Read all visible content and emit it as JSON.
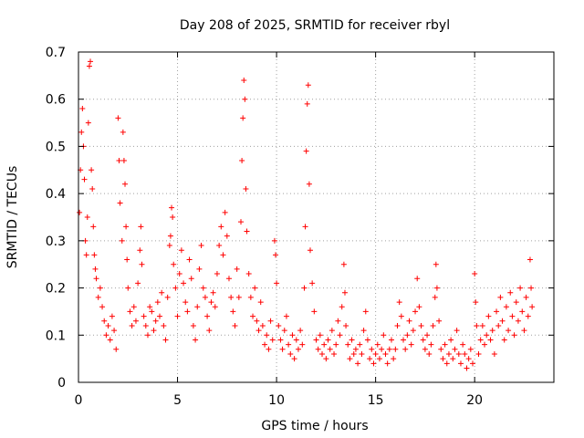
{
  "chart_data": {
    "type": "scatter",
    "title": "Day 208 of 2025, SRMTID for receiver rbyl",
    "xlabel": "GPS time / hours",
    "ylabel": "SRMTID / TECUs",
    "xlim": [
      0,
      24
    ],
    "ylim": [
      0,
      0.7
    ],
    "xticks": [
      0,
      5,
      10,
      15,
      20
    ],
    "yticks": [
      0,
      0.1,
      0.2,
      0.3,
      0.4,
      0.5,
      0.6,
      0.7
    ],
    "xtick_labels": [
      "0",
      "5",
      "10",
      "15",
      "20"
    ],
    "ytick_labels": [
      "0",
      "0.1",
      "0.2",
      "0.3",
      "0.4",
      "0.5",
      "0.6",
      "0.7"
    ],
    "grid": true,
    "marker": "+",
    "color": "#ff0000",
    "series": [
      {
        "name": "SRMTID",
        "points": [
          [
            0.05,
            0.36
          ],
          [
            0.1,
            0.45
          ],
          [
            0.15,
            0.53
          ],
          [
            0.2,
            0.58
          ],
          [
            0.25,
            0.5
          ],
          [
            0.3,
            0.43
          ],
          [
            0.35,
            0.3
          ],
          [
            0.4,
            0.27
          ],
          [
            0.45,
            0.35
          ],
          [
            0.5,
            0.55
          ],
          [
            0.55,
            0.67
          ],
          [
            0.6,
            0.68
          ],
          [
            0.65,
            0.45
          ],
          [
            0.7,
            0.41
          ],
          [
            0.75,
            0.33
          ],
          [
            0.8,
            0.27
          ],
          [
            0.85,
            0.24
          ],
          [
            0.9,
            0.22
          ],
          [
            1.0,
            0.18
          ],
          [
            1.1,
            0.2
          ],
          [
            1.2,
            0.16
          ],
          [
            1.3,
            0.13
          ],
          [
            1.4,
            0.1
          ],
          [
            1.5,
            0.12
          ],
          [
            1.6,
            0.09
          ],
          [
            1.7,
            0.14
          ],
          [
            1.8,
            0.11
          ],
          [
            1.9,
            0.07
          ],
          [
            2.0,
            0.56
          ],
          [
            2.05,
            0.47
          ],
          [
            2.1,
            0.38
          ],
          [
            2.2,
            0.3
          ],
          [
            2.25,
            0.53
          ],
          [
            2.3,
            0.47
          ],
          [
            2.35,
            0.42
          ],
          [
            2.4,
            0.33
          ],
          [
            2.45,
            0.26
          ],
          [
            2.5,
            0.2
          ],
          [
            2.6,
            0.15
          ],
          [
            2.7,
            0.12
          ],
          [
            2.8,
            0.16
          ],
          [
            2.9,
            0.13
          ],
          [
            3.0,
            0.21
          ],
          [
            3.1,
            0.28
          ],
          [
            3.15,
            0.33
          ],
          [
            3.2,
            0.25
          ],
          [
            3.3,
            0.14
          ],
          [
            3.4,
            0.12
          ],
          [
            3.5,
            0.1
          ],
          [
            3.6,
            0.16
          ],
          [
            3.7,
            0.15
          ],
          [
            3.8,
            0.11
          ],
          [
            3.9,
            0.13
          ],
          [
            4.0,
            0.17
          ],
          [
            4.1,
            0.14
          ],
          [
            4.2,
            0.19
          ],
          [
            4.3,
            0.12
          ],
          [
            4.4,
            0.09
          ],
          [
            4.5,
            0.18
          ],
          [
            4.6,
            0.29
          ],
          [
            4.65,
            0.31
          ],
          [
            4.7,
            0.37
          ],
          [
            4.75,
            0.35
          ],
          [
            4.8,
            0.25
          ],
          [
            4.9,
            0.2
          ],
          [
            5.0,
            0.14
          ],
          [
            5.1,
            0.23
          ],
          [
            5.2,
            0.28
          ],
          [
            5.3,
            0.21
          ],
          [
            5.4,
            0.17
          ],
          [
            5.5,
            0.15
          ],
          [
            5.6,
            0.26
          ],
          [
            5.7,
            0.22
          ],
          [
            5.8,
            0.12
          ],
          [
            5.9,
            0.09
          ],
          [
            6.0,
            0.16
          ],
          [
            6.1,
            0.24
          ],
          [
            6.2,
            0.29
          ],
          [
            6.3,
            0.2
          ],
          [
            6.4,
            0.18
          ],
          [
            6.5,
            0.14
          ],
          [
            6.6,
            0.11
          ],
          [
            6.7,
            0.17
          ],
          [
            6.8,
            0.19
          ],
          [
            6.9,
            0.16
          ],
          [
            7.0,
            0.23
          ],
          [
            7.1,
            0.29
          ],
          [
            7.2,
            0.33
          ],
          [
            7.3,
            0.27
          ],
          [
            7.4,
            0.36
          ],
          [
            7.5,
            0.31
          ],
          [
            7.6,
            0.22
          ],
          [
            7.7,
            0.18
          ],
          [
            7.8,
            0.15
          ],
          [
            7.9,
            0.12
          ],
          [
            8.0,
            0.24
          ],
          [
            8.1,
            0.18
          ],
          [
            8.2,
            0.34
          ],
          [
            8.25,
            0.47
          ],
          [
            8.3,
            0.56
          ],
          [
            8.35,
            0.64
          ],
          [
            8.4,
            0.6
          ],
          [
            8.45,
            0.41
          ],
          [
            8.5,
            0.32
          ],
          [
            8.6,
            0.23
          ],
          [
            8.7,
            0.18
          ],
          [
            8.8,
            0.14
          ],
          [
            8.9,
            0.2
          ],
          [
            9.0,
            0.13
          ],
          [
            9.1,
            0.11
          ],
          [
            9.2,
            0.17
          ],
          [
            9.3,
            0.12
          ],
          [
            9.4,
            0.08
          ],
          [
            9.5,
            0.1
          ],
          [
            9.6,
            0.07
          ],
          [
            9.7,
            0.13
          ],
          [
            9.8,
            0.09
          ],
          [
            9.9,
            0.3
          ],
          [
            9.95,
            0.27
          ],
          [
            10.0,
            0.21
          ],
          [
            10.1,
            0.12
          ],
          [
            10.2,
            0.09
          ],
          [
            10.3,
            0.07
          ],
          [
            10.4,
            0.11
          ],
          [
            10.5,
            0.14
          ],
          [
            10.6,
            0.08
          ],
          [
            10.7,
            0.06
          ],
          [
            10.8,
            0.1
          ],
          [
            10.9,
            0.05
          ],
          [
            11.0,
            0.09
          ],
          [
            11.1,
            0.07
          ],
          [
            11.2,
            0.11
          ],
          [
            11.3,
            0.08
          ],
          [
            11.4,
            0.2
          ],
          [
            11.45,
            0.33
          ],
          [
            11.5,
            0.49
          ],
          [
            11.55,
            0.59
          ],
          [
            11.6,
            0.63
          ],
          [
            11.65,
            0.42
          ],
          [
            11.7,
            0.28
          ],
          [
            11.8,
            0.21
          ],
          [
            11.9,
            0.15
          ],
          [
            12.0,
            0.09
          ],
          [
            12.1,
            0.07
          ],
          [
            12.2,
            0.1
          ],
          [
            12.3,
            0.06
          ],
          [
            12.4,
            0.08
          ],
          [
            12.5,
            0.05
          ],
          [
            12.6,
            0.09
          ],
          [
            12.7,
            0.07
          ],
          [
            12.8,
            0.11
          ],
          [
            12.9,
            0.06
          ],
          [
            13.0,
            0.08
          ],
          [
            13.1,
            0.13
          ],
          [
            13.2,
            0.1
          ],
          [
            13.3,
            0.16
          ],
          [
            13.4,
            0.25
          ],
          [
            13.45,
            0.19
          ],
          [
            13.5,
            0.12
          ],
          [
            13.6,
            0.08
          ],
          [
            13.7,
            0.05
          ],
          [
            13.8,
            0.09
          ],
          [
            13.9,
            0.06
          ],
          [
            14.0,
            0.07
          ],
          [
            14.1,
            0.04
          ],
          [
            14.2,
            0.08
          ],
          [
            14.3,
            0.06
          ],
          [
            14.4,
            0.11
          ],
          [
            14.5,
            0.15
          ],
          [
            14.6,
            0.09
          ],
          [
            14.7,
            0.05
          ],
          [
            14.8,
            0.07
          ],
          [
            14.9,
            0.04
          ],
          [
            15.0,
            0.06
          ],
          [
            15.1,
            0.08
          ],
          [
            15.2,
            0.05
          ],
          [
            15.3,
            0.07
          ],
          [
            15.4,
            0.1
          ],
          [
            15.5,
            0.06
          ],
          [
            15.6,
            0.04
          ],
          [
            15.7,
            0.07
          ],
          [
            15.8,
            0.09
          ],
          [
            15.9,
            0.05
          ],
          [
            16.0,
            0.07
          ],
          [
            16.1,
            0.12
          ],
          [
            16.2,
            0.17
          ],
          [
            16.3,
            0.14
          ],
          [
            16.4,
            0.09
          ],
          [
            16.5,
            0.07
          ],
          [
            16.6,
            0.1
          ],
          [
            16.7,
            0.13
          ],
          [
            16.8,
            0.08
          ],
          [
            16.9,
            0.11
          ],
          [
            17.0,
            0.15
          ],
          [
            17.1,
            0.22
          ],
          [
            17.2,
            0.16
          ],
          [
            17.3,
            0.12
          ],
          [
            17.4,
            0.09
          ],
          [
            17.5,
            0.07
          ],
          [
            17.6,
            0.1
          ],
          [
            17.7,
            0.06
          ],
          [
            17.8,
            0.08
          ],
          [
            17.9,
            0.12
          ],
          [
            18.0,
            0.18
          ],
          [
            18.05,
            0.25
          ],
          [
            18.1,
            0.2
          ],
          [
            18.2,
            0.13
          ],
          [
            18.3,
            0.07
          ],
          [
            18.4,
            0.05
          ],
          [
            18.5,
            0.08
          ],
          [
            18.6,
            0.04
          ],
          [
            18.7,
            0.06
          ],
          [
            18.8,
            0.09
          ],
          [
            18.9,
            0.05
          ],
          [
            19.0,
            0.07
          ],
          [
            19.1,
            0.11
          ],
          [
            19.2,
            0.06
          ],
          [
            19.3,
            0.04
          ],
          [
            19.4,
            0.08
          ],
          [
            19.5,
            0.06
          ],
          [
            19.6,
            0.03
          ],
          [
            19.7,
            0.05
          ],
          [
            19.8,
            0.07
          ],
          [
            19.9,
            0.04
          ],
          [
            20.0,
            0.23
          ],
          [
            20.05,
            0.17
          ],
          [
            20.1,
            0.12
          ],
          [
            20.2,
            0.06
          ],
          [
            20.3,
            0.09
          ],
          [
            20.4,
            0.12
          ],
          [
            20.5,
            0.08
          ],
          [
            20.6,
            0.1
          ],
          [
            20.7,
            0.14
          ],
          [
            20.8,
            0.09
          ],
          [
            20.9,
            0.11
          ],
          [
            21.0,
            0.06
          ],
          [
            21.1,
            0.15
          ],
          [
            21.2,
            0.12
          ],
          [
            21.3,
            0.18
          ],
          [
            21.4,
            0.13
          ],
          [
            21.5,
            0.09
          ],
          [
            21.6,
            0.16
          ],
          [
            21.7,
            0.11
          ],
          [
            21.8,
            0.19
          ],
          [
            21.9,
            0.14
          ],
          [
            22.0,
            0.1
          ],
          [
            22.1,
            0.17
          ],
          [
            22.2,
            0.13
          ],
          [
            22.3,
            0.2
          ],
          [
            22.4,
            0.15
          ],
          [
            22.5,
            0.11
          ],
          [
            22.6,
            0.18
          ],
          [
            22.7,
            0.14
          ],
          [
            22.8,
            0.26
          ],
          [
            22.85,
            0.2
          ],
          [
            22.9,
            0.16
          ]
        ]
      }
    ]
  }
}
